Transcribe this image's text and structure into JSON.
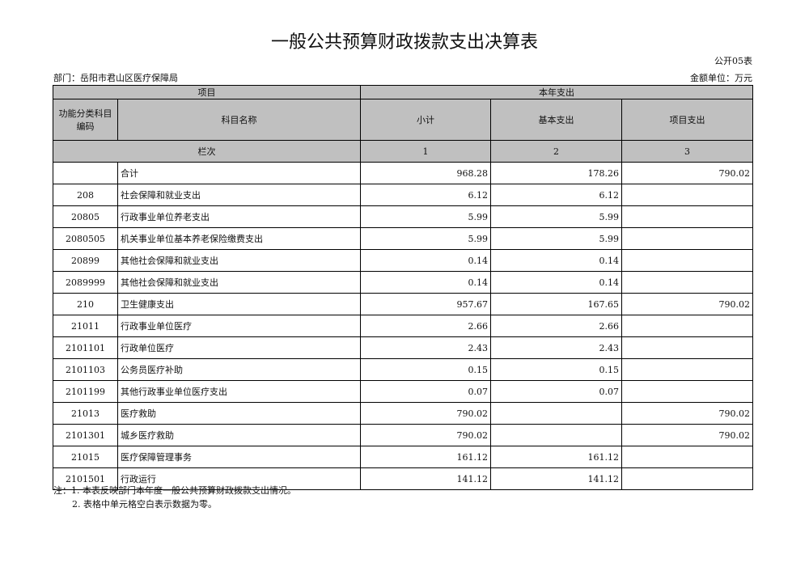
{
  "title": "一般公共预算财政拨款支出决算表",
  "form_no": "公开05表",
  "department": "部门：岳阳市君山区医疗保障局",
  "unit": "金额单位：万元",
  "header": {
    "project": "项目",
    "current_year": "本年支出",
    "code": "功能分类科目编码",
    "name": "科目名称",
    "subtotal": "小计",
    "basic": "基本支出",
    "project_exp": "项目支出",
    "column_order": "栏次",
    "col1": "1",
    "col2": "2",
    "col3": "3"
  },
  "rows": [
    {
      "code": "",
      "name": "合计",
      "subtotal": "968.28",
      "basic": "178.26",
      "project": "790.02"
    },
    {
      "code": "208",
      "name": "社会保障和就业支出",
      "subtotal": "6.12",
      "basic": "6.12",
      "project": ""
    },
    {
      "code": "20805",
      "name": "行政事业单位养老支出",
      "subtotal": "5.99",
      "basic": "5.99",
      "project": ""
    },
    {
      "code": "2080505",
      "name": "机关事业单位基本养老保险缴费支出",
      "subtotal": "5.99",
      "basic": "5.99",
      "project": ""
    },
    {
      "code": "20899",
      "name": "其他社会保障和就业支出",
      "subtotal": "0.14",
      "basic": "0.14",
      "project": ""
    },
    {
      "code": "2089999",
      "name": "其他社会保障和就业支出",
      "subtotal": "0.14",
      "basic": "0.14",
      "project": ""
    },
    {
      "code": "210",
      "name": "卫生健康支出",
      "subtotal": "957.67",
      "basic": "167.65",
      "project": "790.02"
    },
    {
      "code": "21011",
      "name": "行政事业单位医疗",
      "subtotal": "2.66",
      "basic": "2.66",
      "project": ""
    },
    {
      "code": "2101101",
      "name": "行政单位医疗",
      "subtotal": "2.43",
      "basic": "2.43",
      "project": ""
    },
    {
      "code": "2101103",
      "name": "公务员医疗补助",
      "subtotal": "0.15",
      "basic": "0.15",
      "project": ""
    },
    {
      "code": "2101199",
      "name": "其他行政事业单位医疗支出",
      "subtotal": "0.07",
      "basic": "0.07",
      "project": ""
    },
    {
      "code": "21013",
      "name": "医疗救助",
      "subtotal": "790.02",
      "basic": "",
      "project": "790.02"
    },
    {
      "code": "2101301",
      "name": "城乡医疗救助",
      "subtotal": "790.02",
      "basic": "",
      "project": "790.02"
    },
    {
      "code": "21015",
      "name": "医疗保障管理事务",
      "subtotal": "161.12",
      "basic": "161.12",
      "project": ""
    },
    {
      "code": "2101501",
      "name": "行政运行",
      "subtotal": "141.12",
      "basic": "141.12",
      "project": ""
    }
  ],
  "notes": [
    "注：1. 本表反映部门本年度一般公共预算财政拨款支出情况。",
    "2. 表格中单元格空白表示数据为零。"
  ]
}
